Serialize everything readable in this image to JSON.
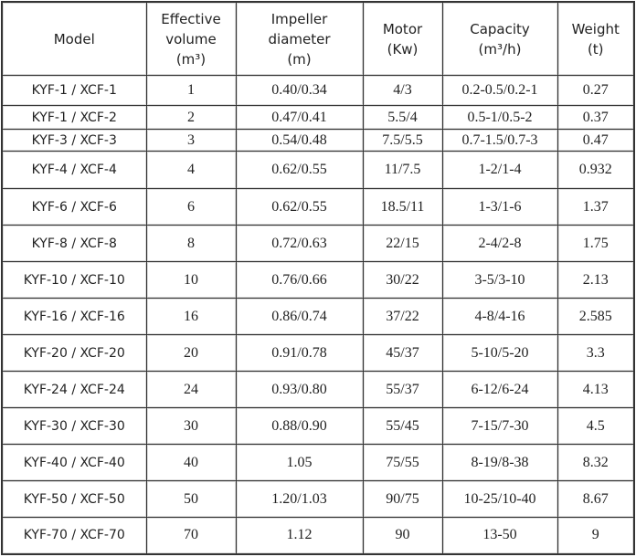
{
  "table": {
    "header": [
      [
        "Model"
      ],
      [
        "Effective",
        "volume",
        "(m³)"
      ],
      [
        "Impeller",
        "diameter",
        "(m)"
      ],
      [
        "Motor",
        "(Kw)"
      ],
      [
        "Capacity",
        "(m³/h)"
      ],
      [
        "Weight",
        "(t)"
      ]
    ],
    "rows": [
      [
        "KYF-1 / XCF-1",
        "1",
        "0.40/0.34",
        "4/3",
        "0.2-0.5/0.2-1",
        "0.27"
      ],
      [
        "KYF-1 / XCF-2",
        "2",
        "0.47/0.41",
        "5.5/4",
        "0.5-1/0.5-2",
        "0.37"
      ],
      [
        "KYF-3 / XCF-3",
        "3",
        "0.54/0.48",
        "7.5/5.5",
        "0.7-1.5/0.7-3",
        "0.47"
      ],
      [
        "KYF-4 / XCF-4",
        "4",
        "0.62/0.55",
        "11/7.5",
        "1-2/1-4",
        "0.932"
      ],
      [
        "KYF-6 / XCF-6",
        "6",
        "0.62/0.55",
        "18.5/11",
        "1-3/1-6",
        "1.37"
      ],
      [
        "KYF-8 / XCF-8",
        "8",
        "0.72/0.63",
        "22/15",
        "2-4/2-8",
        "1.75"
      ],
      [
        "KYF-10 / XCF-10",
        "10",
        "0.76/0.66",
        "30/22",
        "3-5/3-10",
        "2.13"
      ],
      [
        "KYF-16 / XCF-16",
        "16",
        "0.86/0.74",
        "37/22",
        "4-8/4-16",
        "2.585"
      ],
      [
        "KYF-20 / XCF-20",
        "20",
        "0.91/0.78",
        "45/37",
        "5-10/5-20",
        "3.3"
      ],
      [
        "KYF-24 / XCF-24",
        "24",
        "0.93/0.80",
        "55/37",
        "6-12/6-24",
        "4.13"
      ],
      [
        "KYF-30 / XCF-30",
        "30",
        "0.88/0.90",
        "55/45",
        "7-15/7-30",
        "4.5"
      ],
      [
        "KYF-40 / XCF-40",
        "40",
        "1.05",
        "75/55",
        "8-19/8-38",
        "8.32"
      ],
      [
        "KYF-50 / XCF-50",
        "50",
        "1.20/1.03",
        "90/75",
        "10-25/10-40",
        "8.67"
      ],
      [
        "KYF-70 / XCF-70",
        "70",
        "1.12",
        "90",
        "13-50",
        "9"
      ]
    ]
  }
}
